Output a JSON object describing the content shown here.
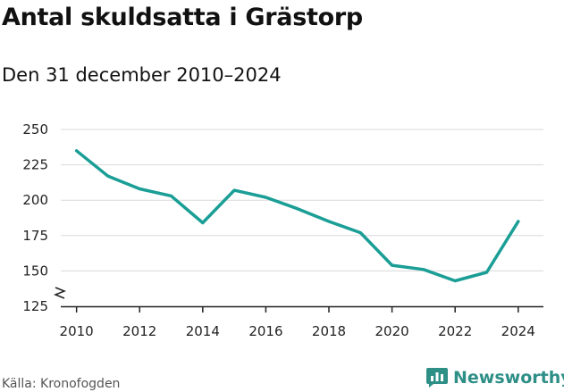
{
  "header": {
    "title": "Antal skuldsatta i Grästorp",
    "subtitle": "Den 31 december 2010–2024"
  },
  "footer": {
    "source": "Källa: Kronofogden",
    "brand": "Newsworthy"
  },
  "colors": {
    "line": "#1a9e96",
    "grid": "#d9d9d9",
    "axis": "#222222",
    "brand": "#2e8f87"
  },
  "chart_data": {
    "type": "line",
    "title": "Antal skuldsatta i Grästorp",
    "subtitle": "Den 31 december 2010–2024",
    "xlabel": "",
    "ylabel": "",
    "x": [
      2010,
      2011,
      2012,
      2013,
      2014,
      2015,
      2016,
      2017,
      2018,
      2019,
      2020,
      2021,
      2022,
      2023,
      2024
    ],
    "series": [
      {
        "name": "Antal skuldsatta",
        "values": [
          235,
          217,
          208,
          203,
          184,
          207,
          202,
          194,
          185,
          177,
          154,
          151,
          143,
          149,
          185
        ]
      }
    ],
    "ylim": [
      125,
      250
    ],
    "xlim": [
      2009.5,
      2024.8
    ],
    "yticks": [
      125,
      150,
      175,
      200,
      225,
      250
    ],
    "xticks": [
      2010,
      2012,
      2014,
      2016,
      2018,
      2020,
      2022,
      2024
    ],
    "grid": true,
    "axis_break": true,
    "legend": "none"
  }
}
